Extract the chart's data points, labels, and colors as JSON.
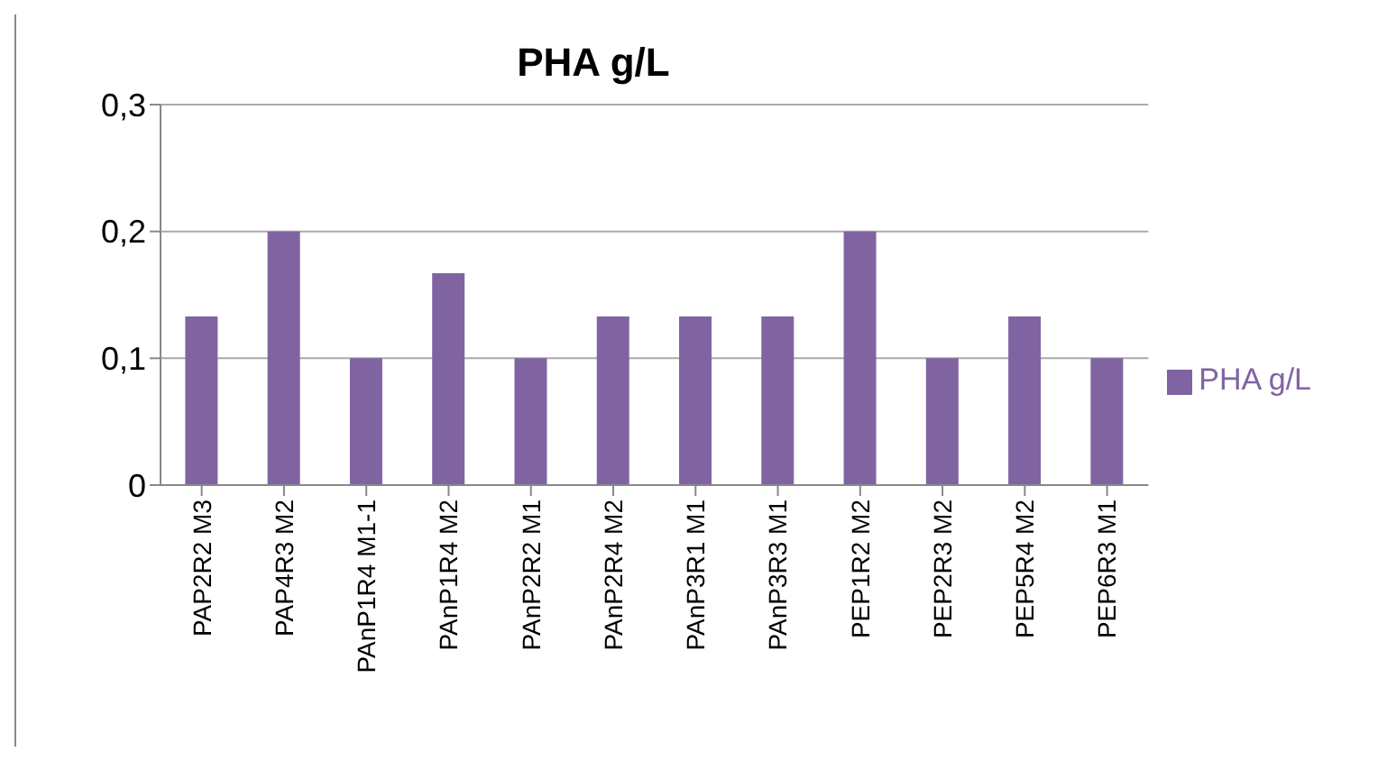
{
  "chart_data": {
    "type": "bar",
    "title": "PHA g/L",
    "categories": [
      "PAP2R2 M3",
      "PAP4R3 M2",
      "PAnP1R4 M1-1",
      "PAnP1R4 M2",
      "PAnP2R2 M1",
      "PAnP2R4 M2",
      "PAnP3R1 M1",
      "PAnP3R3 M1",
      "PEP1R2 M2",
      "PEP2R3 M2",
      "PEP5R4 M2",
      "PEP6R3 M1"
    ],
    "series": [
      {
        "name": "PHA g/L",
        "color": "#8064a2",
        "values": [
          0.133,
          0.2,
          0.1,
          0.167,
          0.1,
          0.133,
          0.133,
          0.133,
          0.2,
          0.1,
          0.133,
          0.1
        ]
      }
    ],
    "ylim": [
      0,
      0.3
    ],
    "yticks": [
      {
        "value": 0,
        "label": "0"
      },
      {
        "value": 0.1,
        "label": "0,1"
      },
      {
        "value": 0.2,
        "label": "0,2"
      },
      {
        "value": 0.3,
        "label": "0,3"
      }
    ],
    "grid": "y",
    "legend": "right"
  }
}
